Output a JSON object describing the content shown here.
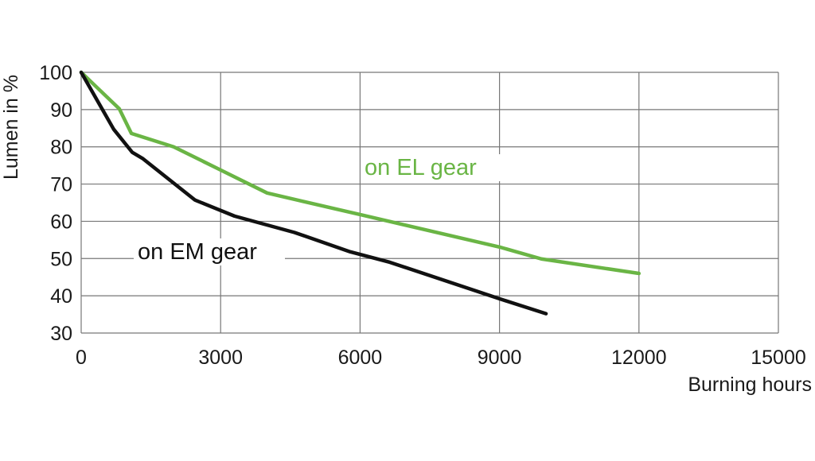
{
  "chart_data": {
    "type": "line",
    "title": "",
    "xlabel": "Burning hours",
    "ylabel": "Lumen in %",
    "xlim": [
      0,
      15000
    ],
    "ylim": [
      30,
      100
    ],
    "xticks": [
      "0",
      "3000",
      "6000",
      "9000",
      "12000",
      "15000"
    ],
    "yticks": [
      "30",
      "40",
      "50",
      "60",
      "70",
      "80",
      "90",
      "100"
    ],
    "grid": true,
    "series": [
      {
        "name": "on EL gear",
        "color": "#6ab545",
        "x": [
          0,
          820,
          1080,
          1990,
          2930,
          4000,
          5480,
          6000,
          9000,
          9900,
          12000
        ],
        "y": [
          100,
          90.2,
          83.6,
          80,
          74.2,
          67.6,
          63.3,
          61.8,
          53.1,
          49.9,
          46
        ]
      },
      {
        "name": "on EM gear",
        "color": "#111111",
        "x": [
          0,
          700,
          1100,
          1330,
          2450,
          3300,
          4590,
          5790,
          6640,
          9000,
          10000
        ],
        "y": [
          100,
          84.7,
          78.5,
          76.8,
          65.7,
          61.4,
          57,
          51.8,
          49,
          39.2,
          35.2
        ]
      }
    ]
  }
}
